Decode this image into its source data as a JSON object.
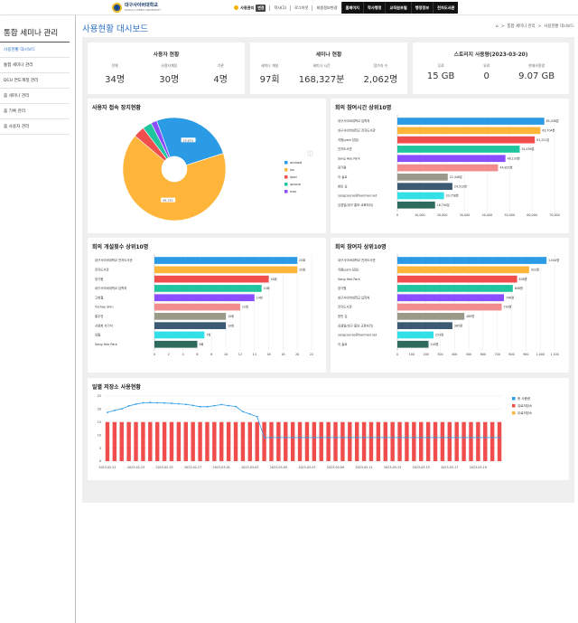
{
  "header": {
    "logo_text": "대구사이버대학교",
    "logo_sub": "DAEGU CYBER UNIVERSITY",
    "user": "사용관리",
    "user_badge": "변경",
    "links": [
      "학사(1)",
      "로그아웃",
      "회원정보변경"
    ],
    "dark_menu": [
      "홈페이지",
      "학사행정",
      "교직원포털",
      "행정정보",
      "전자도서관"
    ]
  },
  "sidebar": {
    "title": "통합 세미나 관리",
    "items": [
      {
        "label": "사용현황 대시보드",
        "active": true
      },
      {
        "label": "통합 세미나 관리",
        "active": false
      },
      {
        "label": "DCU 연도계정 관리",
        "active": false
      },
      {
        "label": "줌 세미나 관리",
        "active": false
      },
      {
        "label": "줌 기록 관리",
        "active": false
      },
      {
        "label": "줌 사용자 관리",
        "active": false
      }
    ]
  },
  "page": {
    "title": "사용현황 대시보드",
    "breadcrumb": [
      "통합 세미나 관리",
      "사용현황 대시보드"
    ]
  },
  "stats": [
    {
      "title": "사용자 현황",
      "items": [
        {
          "label": "전체",
          "value": "34명"
        },
        {
          "label": "사용자계정",
          "value": "30명"
        },
        {
          "label": "기관",
          "value": "4명"
        }
      ]
    },
    {
      "title": "세미나 현황",
      "items": [
        {
          "label": "세미나 개설",
          "value": "97회"
        },
        {
          "label": "세미나 시간",
          "value": "168,327분"
        },
        {
          "label": "참가자 수",
          "value": "2,062명"
        }
      ]
    },
    {
      "title": "스토리지 사용량(2023-03-20)",
      "items": [
        {
          "label": "무료",
          "value": "15 GB"
        },
        {
          "label": "유료",
          "value": "0"
        },
        {
          "label": "현재사용량",
          "value": "9.07 GB"
        }
      ]
    }
  ],
  "colors": {
    "android": "#2b9be6",
    "ios": "#ffb43a",
    "ipad": "#f04d4d",
    "iphone": "#1ec59e",
    "mac": "#8a4dff",
    "accent": "#2c6fc7",
    "bar_red": "#f04d4d",
    "line_blue": "#2b9be6"
  },
  "chart_data": [
    {
      "type": "pie",
      "title": "사용자 접속 장치현황",
      "series": [
        {
          "name": "android",
          "value": 25.62
        },
        {
          "name": "ios",
          "value": 66.13
        },
        {
          "name": "ipad",
          "value": 3.5
        },
        {
          "name": "iphone",
          "value": 2.9
        },
        {
          "name": "mac",
          "value": 1.85
        }
      ],
      "labels": {
        "android": "25.62%",
        "ios": "66.13%"
      }
    },
    {
      "type": "bar",
      "orientation": "horizontal",
      "title": "회의 참여시간 상위10명",
      "categories": [
        "대구사이버대학교 입학처",
        "대구사이버대학교 전자도서관",
        "지원(psm 담당)",
        "전자도서관",
        "Sang Hee Park",
        "장기원",
        "이 솔로",
        "한민 김",
        "songcourse@hanmail.net",
        "김경일(대구 홍보·교육처리)"
      ],
      "values": [
        65438,
        63704,
        61221,
        54499,
        48133,
        44825,
        22446,
        24510,
        20758,
        16790
      ],
      "value_labels": [
        "65,438분",
        "63,704분",
        "61,221분",
        "54,499분",
        "48,133분",
        "44,825분",
        "22,446분",
        "24,510분",
        "20,758분",
        "16,790분"
      ],
      "xlim": [
        0,
        70000
      ],
      "xticks": [
        "0",
        "10,000",
        "20,000",
        "30,000",
        "40,000",
        "50,000",
        "60,000",
        "70,000"
      ]
    },
    {
      "type": "bar",
      "orientation": "horizontal",
      "title": "회의 개설횟수 상위10명",
      "categories": [
        "대구사이버대학교 전자도서관",
        "전자도서관",
        "장기원",
        "대구사이버대학교 입학처",
        "고희철",
        "Yuchae Shin",
        "홍주연",
        "서정희 서기석",
        "임필",
        "Sang Hee Park"
      ],
      "values": [
        20,
        20,
        16,
        15,
        14,
        12,
        10,
        10,
        7,
        6
      ],
      "value_labels": [
        "20회",
        "20회",
        "16회",
        "15회",
        "14회",
        "12회",
        "10회",
        "10회",
        "7회",
        "6회"
      ],
      "xlim": [
        0,
        22
      ],
      "xticks": [
        "0",
        "2",
        "4",
        "6",
        "8",
        "10",
        "12",
        "14",
        "16",
        "18",
        "20",
        "22"
      ]
    },
    {
      "type": "bar",
      "orientation": "horizontal",
      "title": "회의 참여자 상위10명",
      "categories": [
        "대구사이버대학교 전자도서관",
        "지원(psm 담당)",
        "Sang Hee Park",
        "장기원",
        "대구사이버대학교 입학처",
        "전자도서관",
        "한민 김",
        "김경일(대구 홍보·교육처리)",
        "songcourse@hanmail.net",
        "이 솔로"
      ],
      "values": [
        1044,
        922,
        838,
        808,
        746,
        730,
        469,
        385,
        253,
        218
      ],
      "value_labels": [
        "1,044명",
        "922명",
        "838명",
        "808명",
        "746명",
        "730명",
        "469명",
        "385명",
        "253명",
        "218명"
      ],
      "xlim": [
        0,
        1100
      ],
      "xticks": [
        "0",
        "100",
        "200",
        "300",
        "400",
        "500",
        "600",
        "700",
        "800",
        "900",
        "1,000",
        "1,100"
      ]
    },
    {
      "type": "bar",
      "title": "일별 저장소 사용현황",
      "ylim": [
        0,
        25
      ],
      "yticks": [
        "0",
        "5",
        "10",
        "15",
        "20",
        "25"
      ],
      "xticks": [
        "2023-02-21",
        "2023-02-23",
        "2023-02-25",
        "2023-02-27",
        "2023-03-01",
        "2023-03-03",
        "2023-03-05",
        "2023-03-07",
        "2023-03-09",
        "2023-03-11",
        "2023-03-13",
        "2023-03-15",
        "2023-03-17",
        "2023-03-19"
      ],
      "legend": [
        "총 사용량",
        "유료저장소",
        "무료저장소"
      ],
      "line_values": [
        18.7,
        19.5,
        20.1,
        21.2,
        21.9,
        22.4,
        22.5,
        22.4,
        22.3,
        22.2,
        22.0,
        21.8,
        21.4,
        20.9,
        20.9,
        21.3,
        21.7,
        21.3,
        21.0,
        19.0,
        18.1,
        17.1,
        9.07,
        9.07,
        9.07,
        9.07,
        9.07,
        9.07,
        9.07,
        9.07,
        9.07,
        9.07,
        9.07,
        9.07,
        9.07,
        9.07,
        9.07,
        9.07,
        9.07,
        9.07,
        9.07,
        9.07,
        9.07,
        9.07,
        9.07,
        9.07,
        9.07,
        9.07,
        9.07,
        9.07,
        9.07,
        9.07,
        9.07,
        9.07,
        9.07,
        9.07
      ],
      "bar_value": 15
    }
  ]
}
